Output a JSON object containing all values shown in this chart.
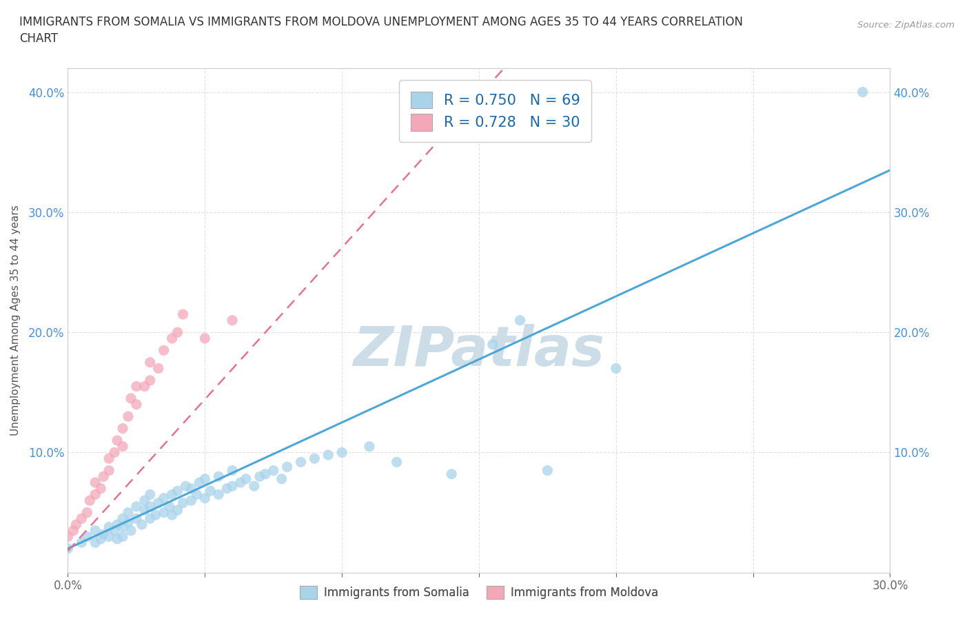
{
  "title": "IMMIGRANTS FROM SOMALIA VS IMMIGRANTS FROM MOLDOVA UNEMPLOYMENT AMONG AGES 35 TO 44 YEARS CORRELATION\nCHART",
  "source_text": "Source: ZipAtlas.com",
  "ylabel": "Unemployment Among Ages 35 to 44 years",
  "xlim": [
    0.0,
    0.3
  ],
  "ylim": [
    0.0,
    0.42
  ],
  "xticks": [
    0.0,
    0.05,
    0.1,
    0.15,
    0.2,
    0.25,
    0.3
  ],
  "yticks": [
    0.0,
    0.1,
    0.2,
    0.3,
    0.4
  ],
  "ytick_labels": [
    "",
    "10.0%",
    "20.0%",
    "30.0%",
    "40.0%"
  ],
  "xtick_labels": [
    "0.0%",
    "",
    "",
    "",
    "",
    "",
    "30.0%"
  ],
  "somalia_color": "#a8d4ea",
  "moldova_color": "#f4a7b9",
  "somalia_line_color": "#4da6d8",
  "moldova_line_color": "#e87090",
  "R_somalia": 0.75,
  "N_somalia": 69,
  "R_moldova": 0.728,
  "N_moldova": 30,
  "watermark": "ZIPatlas",
  "watermark_color": "#ccdde8",
  "somalia_scatter_x": [
    0.0,
    0.005,
    0.007,
    0.01,
    0.01,
    0.012,
    0.013,
    0.015,
    0.015,
    0.017,
    0.018,
    0.018,
    0.02,
    0.02,
    0.02,
    0.022,
    0.022,
    0.023,
    0.025,
    0.025,
    0.027,
    0.028,
    0.028,
    0.03,
    0.03,
    0.03,
    0.032,
    0.033,
    0.035,
    0.035,
    0.037,
    0.038,
    0.038,
    0.04,
    0.04,
    0.042,
    0.043,
    0.045,
    0.045,
    0.047,
    0.048,
    0.05,
    0.05,
    0.052,
    0.055,
    0.055,
    0.058,
    0.06,
    0.06,
    0.063,
    0.065,
    0.068,
    0.07,
    0.072,
    0.075,
    0.078,
    0.08,
    0.085,
    0.09,
    0.095,
    0.1,
    0.11,
    0.12,
    0.14,
    0.155,
    0.165,
    0.175,
    0.2,
    0.29
  ],
  "somalia_scatter_y": [
    0.02,
    0.025,
    0.03,
    0.025,
    0.035,
    0.028,
    0.032,
    0.03,
    0.038,
    0.035,
    0.028,
    0.04,
    0.038,
    0.045,
    0.03,
    0.042,
    0.05,
    0.035,
    0.045,
    0.055,
    0.04,
    0.052,
    0.06,
    0.045,
    0.055,
    0.065,
    0.048,
    0.058,
    0.05,
    0.062,
    0.055,
    0.048,
    0.065,
    0.052,
    0.068,
    0.058,
    0.072,
    0.06,
    0.07,
    0.065,
    0.075,
    0.062,
    0.078,
    0.068,
    0.065,
    0.08,
    0.07,
    0.072,
    0.085,
    0.075,
    0.078,
    0.072,
    0.08,
    0.082,
    0.085,
    0.078,
    0.088,
    0.092,
    0.095,
    0.098,
    0.1,
    0.105,
    0.092,
    0.082,
    0.19,
    0.21,
    0.085,
    0.17,
    0.4
  ],
  "moldova_scatter_x": [
    0.0,
    0.002,
    0.003,
    0.005,
    0.007,
    0.008,
    0.01,
    0.01,
    0.012,
    0.013,
    0.015,
    0.015,
    0.017,
    0.018,
    0.02,
    0.02,
    0.022,
    0.023,
    0.025,
    0.025,
    0.028,
    0.03,
    0.03,
    0.033,
    0.035,
    0.038,
    0.04,
    0.042,
    0.05,
    0.06
  ],
  "moldova_scatter_y": [
    0.03,
    0.035,
    0.04,
    0.045,
    0.05,
    0.06,
    0.065,
    0.075,
    0.07,
    0.08,
    0.085,
    0.095,
    0.1,
    0.11,
    0.105,
    0.12,
    0.13,
    0.145,
    0.14,
    0.155,
    0.155,
    0.16,
    0.175,
    0.17,
    0.185,
    0.195,
    0.2,
    0.215,
    0.195,
    0.21
  ],
  "somalia_regline": [
    0.02,
    0.335
  ],
  "moldova_regline_x": [
    0.0,
    0.08
  ],
  "moldova_regline_y": [
    0.018,
    0.22
  ],
  "background_color": "#ffffff",
  "grid_color": "#e0e0e0"
}
